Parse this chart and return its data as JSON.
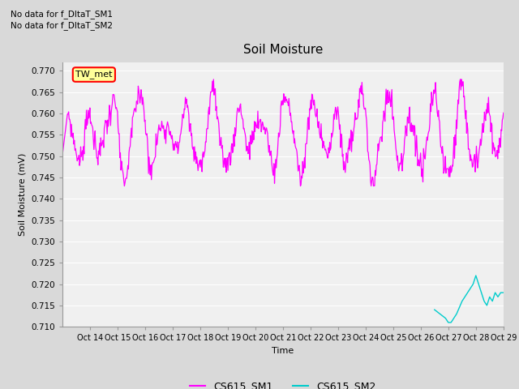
{
  "title": "Soil Moisture",
  "xlabel": "Time",
  "ylabel": "Soil Moisture (mV)",
  "ylim": [
    0.71,
    0.772
  ],
  "yticks": [
    0.71,
    0.715,
    0.72,
    0.725,
    0.73,
    0.735,
    0.74,
    0.745,
    0.75,
    0.755,
    0.76,
    0.765,
    0.77
  ],
  "xtick_labels": [
    "Oct 14",
    "Oct 15",
    "Oct 16",
    "Oct 17",
    "Oct 18",
    "Oct 19",
    "Oct 20",
    "Oct 21",
    "Oct 22",
    "Oct 23",
    "Oct 24",
    "Oct 25",
    "Oct 26",
    "Oct 27",
    "Oct 28",
    "Oct 29"
  ],
  "no_data_texts": [
    "No data for f_DltaT_SM1",
    "No data for f_DltaT_SM2"
  ],
  "legend_box_label": "TW_met",
  "legend_box_color": "#ff0000",
  "legend_box_bg": "#ffff99",
  "cs615_sm1_color": "#ff00ff",
  "cs615_sm2_color": "#00cccc",
  "fig_bg_color": "#d9d9d9",
  "plot_bg_color": "#f0f0f0",
  "grid_color": "#ffffff"
}
